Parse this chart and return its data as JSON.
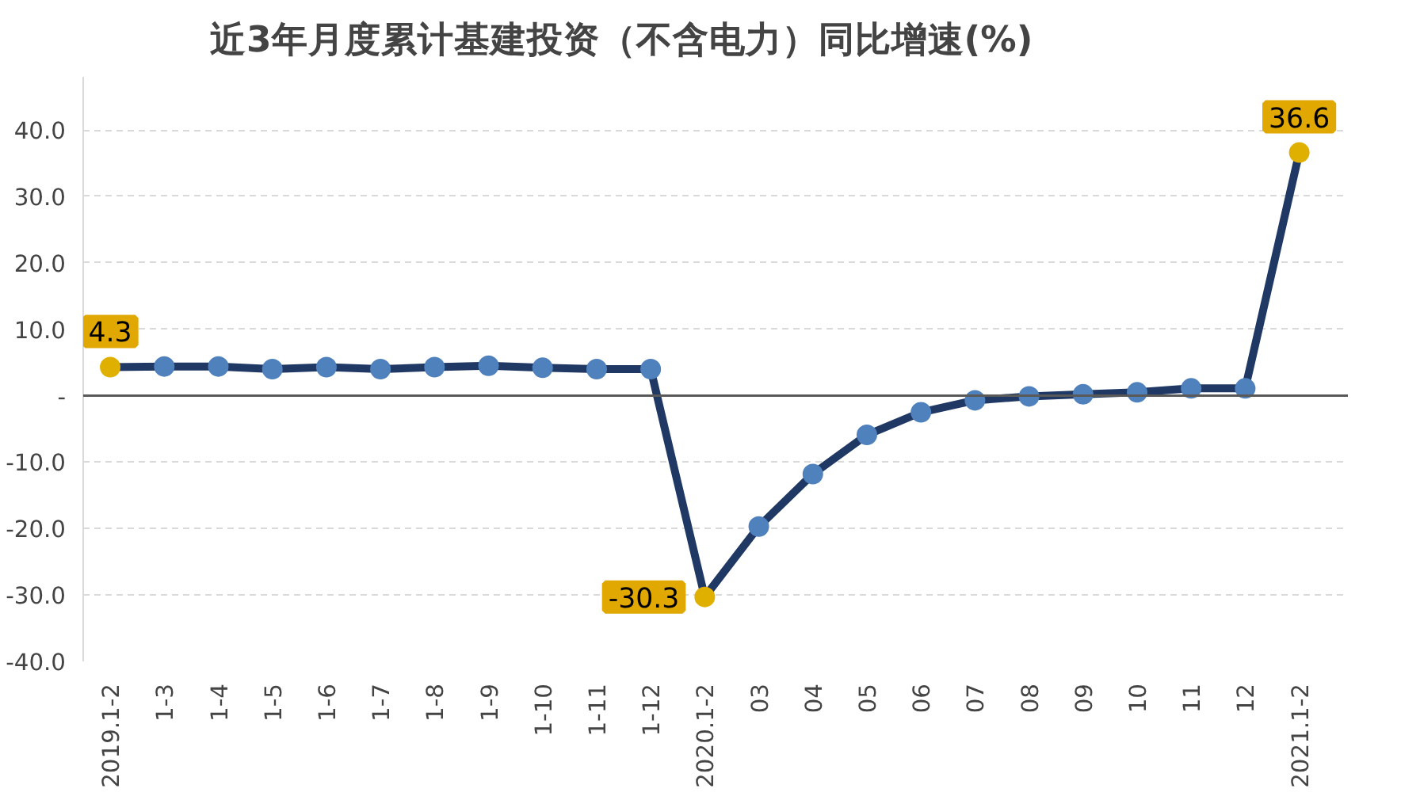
{
  "chart_data": {
    "type": "line",
    "title": "近3年月度累计基建投资（不含电力）同比增速(%)",
    "categories": [
      "2019.1-2",
      "1-3",
      "1-4",
      "1-5",
      "1-6",
      "1-7",
      "1-8",
      "1-9",
      "1-10",
      "1-11",
      "1-12",
      "2020.1-2",
      "03",
      "04",
      "05",
      "06",
      "07",
      "08",
      "09",
      "10",
      "11",
      "12",
      "2021.1-2"
    ],
    "series": [
      {
        "color": "#1f3864",
        "values": [
          4.3,
          4.4,
          4.4,
          4.0,
          4.3,
          4.0,
          4.3,
          4.5,
          4.2,
          4.0,
          4.0,
          -30.3,
          -19.7,
          -11.8,
          -5.9,
          -2.5,
          -0.7,
          -0.1,
          0.2,
          0.5,
          1.1,
          1.1,
          36.6
        ],
        "colors": [
          "#e0b000",
          "#4f81bd",
          "#4f81bd",
          "#4f81bd",
          "#4f81bd",
          "#4f81bd",
          "#4f81bd",
          "#4f81bd",
          "#4f81bd",
          "#4f81bd",
          "#4f81bd",
          "#e0b000",
          "#4f81bd",
          "#4f81bd",
          "#4f81bd",
          "#4f81bd",
          "#4f81bd",
          "#4f81bd",
          "#4f81bd",
          "#4f81bd",
          "#4f81bd",
          "#4f81bd",
          "#e0b000"
        ],
        "value_labels": [
          "4.3",
          null,
          null,
          null,
          null,
          null,
          null,
          null,
          null,
          null,
          null,
          "-30.3",
          null,
          null,
          null,
          null,
          null,
          null,
          null,
          null,
          null,
          null,
          "36.6"
        ]
      }
    ],
    "ylim": [
      -40,
      48
    ],
    "yticks": [
      {
        "value": -40,
        "label": "-40.0"
      },
      {
        "value": -30,
        "label": "-30.0"
      },
      {
        "value": -20,
        "label": "-20.0"
      },
      {
        "value": -10,
        "label": "-10.0"
      },
      {
        "value": 0,
        "label": "-"
      },
      {
        "value": 10,
        "label": "10.0"
      },
      {
        "value": 20,
        "label": "20.0"
      },
      {
        "value": 30,
        "label": "30.0"
      },
      {
        "value": 40,
        "label": "40.0"
      }
    ],
    "grid": "y",
    "marker": "circle",
    "line_style": "solid"
  }
}
